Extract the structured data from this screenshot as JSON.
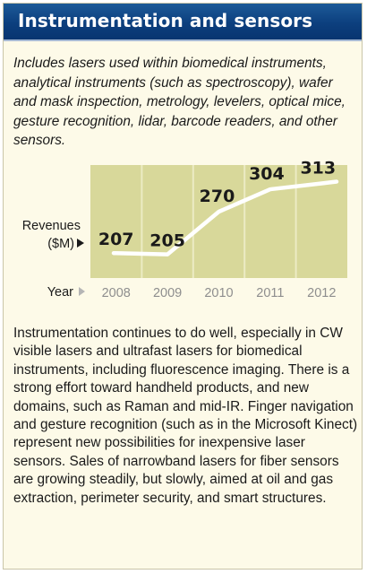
{
  "header": {
    "title": "Instrumentation and sensors"
  },
  "intro_text": "Includes lasers used within biomedical instruments, analytical instruments (such as spectroscopy), wafer and mask inspection, metrology, levelers, optical mice, gesture recognition, lidar, barcode readers, and other sensors.",
  "body_text": "Instrumentation continues to do well, especially in CW visible lasers and ultrafast lasers for biomedical instruments, including fluorescence imaging. There is a strong effort toward handheld products, and new domains, such as Raman and mid-IR. Finger navigation and gesture recognition (such as in the Microsoft Kinect) represent new possibilities for inexpensive laser sensors. Sales of narrowband lasers for fiber sensors are growing steadily, but slowly, aimed at oil and gas extraction, perimeter security, and smart structures.",
  "chart_data": {
    "type": "line",
    "title": "",
    "xlabel": "Year",
    "ylabel_line1": "Revenues",
    "ylabel_line2": "($M)",
    "categories": [
      "2008",
      "2009",
      "2010",
      "2011",
      "2012"
    ],
    "values": [
      207,
      205,
      270,
      304,
      313
    ],
    "value_labels": [
      "207",
      "205",
      "270",
      "304",
      "313"
    ],
    "grid": false,
    "colors": {
      "plot_bg": "#d8d89a",
      "line": "#ffffff",
      "separators": "#ecebc4",
      "arrow": "#1a1a1a",
      "tick_arrow": "#b5b5b5",
      "tick_label": "#8e8e8e"
    }
  }
}
